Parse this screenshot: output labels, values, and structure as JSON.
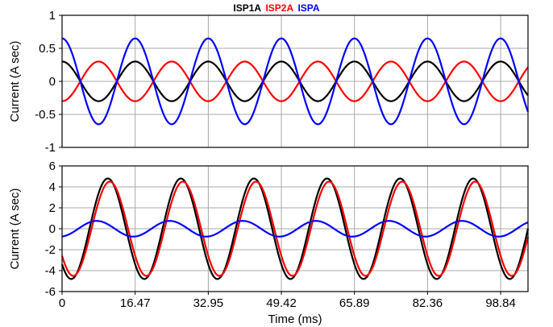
{
  "legend": {
    "items": [
      {
        "label": "ISP1A",
        "color": "#000000"
      },
      {
        "label": "ISP2A",
        "color": "#ff0000"
      },
      {
        "label": "ISPA",
        "color": "#0000ff"
      }
    ]
  },
  "chart_data": [
    {
      "type": "line",
      "ylabel": "Current (A sec)",
      "xlabel": "",
      "xlim": [
        0,
        105
      ],
      "ylim": [
        -1,
        1
      ],
      "yticks": [
        1,
        0.5,
        0,
        -0.5,
        -1
      ],
      "xticks": [
        0,
        16.47,
        32.95,
        49.42,
        65.89,
        82.36,
        98.84
      ],
      "grid": true,
      "series": [
        {
          "name": "ISP1A",
          "color": "#000000",
          "amplitude": 0.3,
          "period_ms": 16.47,
          "phase_deg": 90
        },
        {
          "name": "ISP2A",
          "color": "#ff0000",
          "amplitude": 0.3,
          "period_ms": 16.47,
          "phase_deg": -90
        },
        {
          "name": "ISPA",
          "color": "#0000ff",
          "amplitude": 0.65,
          "period_ms": 16.47,
          "phase_deg": 90
        }
      ]
    },
    {
      "type": "line",
      "ylabel": "Current (A sec)",
      "xlabel": "Time (ms)",
      "xlim": [
        0,
        105
      ],
      "ylim": [
        -6,
        6
      ],
      "yticks": [
        6,
        4,
        2,
        0,
        -2,
        -4,
        -6
      ],
      "xticks": [
        0,
        16.47,
        32.95,
        49.42,
        65.89,
        82.36,
        98.84
      ],
      "xticklabels": [
        "0",
        "16.47",
        "32.95",
        "49.42",
        "65.89",
        "82.36",
        "98.84"
      ],
      "grid": true,
      "series": [
        {
          "name": "ISP1A",
          "color": "#000000",
          "amplitude": 4.8,
          "period_ms": 16.47,
          "phase_deg": -135
        },
        {
          "name": "ISP2A",
          "color": "#ff0000",
          "amplitude": 4.5,
          "period_ms": 16.47,
          "phase_deg": -145
        },
        {
          "name": "ISPA",
          "color": "#0000ff",
          "amplitude": 0.75,
          "period_ms": 16.47,
          "phase_deg": -80
        }
      ]
    }
  ]
}
